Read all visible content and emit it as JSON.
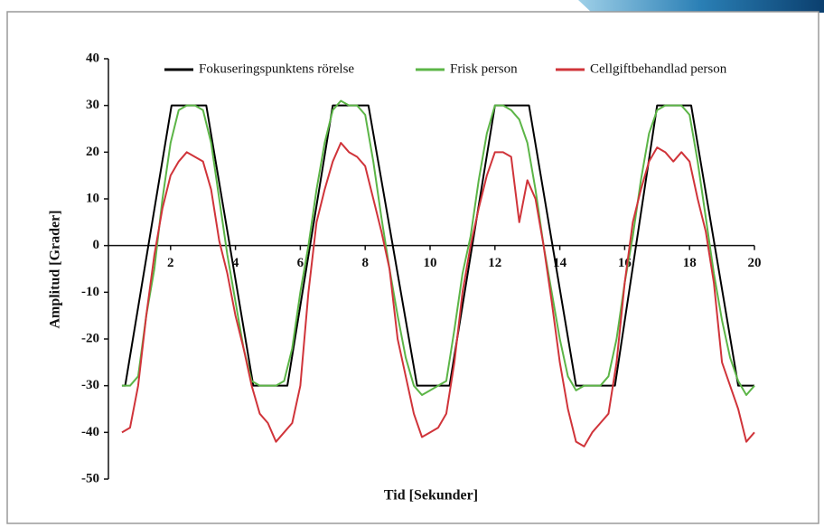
{
  "chart_data": {
    "type": "line",
    "x_label": "Tid [Sekunder]",
    "y_label": "Amplitud [Grader]",
    "xlim": [
      0,
      20
    ],
    "ylim": [
      -50,
      40
    ],
    "xticks": [
      2,
      4,
      6,
      8,
      10,
      12,
      14,
      16,
      18,
      20
    ],
    "yticks": [
      -50,
      -40,
      -30,
      -20,
      -10,
      0,
      10,
      20,
      30,
      40
    ],
    "grid": false,
    "legend": "top",
    "series": [
      {
        "name": "Fokuseringspunktens rörelse",
        "color": "#000000",
        "x": [
          0.5,
          0.6,
          2.03,
          3.1,
          4.55,
          5.6,
          7.0,
          8.1,
          9.6,
          10.6,
          12.0,
          13.05,
          14.5,
          15.7,
          17.0,
          18.05,
          19.5,
          20
        ],
        "values": [
          -30,
          -30,
          30,
          30,
          -30,
          -30,
          30,
          30,
          -30,
          -30,
          30,
          30,
          -30,
          -30,
          30,
          30,
          -30,
          -30
        ]
      },
      {
        "name": "Frisk person",
        "color": "#5cb547",
        "x": [
          0.5,
          0.75,
          1,
          1.25,
          1.5,
          1.75,
          2,
          2.25,
          2.5,
          2.75,
          3,
          3.25,
          3.5,
          3.75,
          4,
          4.25,
          4.5,
          4.75,
          5,
          5.25,
          5.5,
          5.75,
          6,
          6.25,
          6.5,
          6.75,
          7,
          7.25,
          7.5,
          7.75,
          8,
          8.25,
          8.5,
          8.75,
          9,
          9.25,
          9.5,
          9.75,
          10,
          10.25,
          10.5,
          10.75,
          11,
          11.25,
          11.5,
          11.75,
          12,
          12.25,
          12.5,
          12.75,
          13,
          13.25,
          13.5,
          13.75,
          14,
          14.25,
          14.5,
          14.75,
          15,
          15.25,
          15.5,
          15.75,
          16,
          16.25,
          16.5,
          16.75,
          17,
          17.25,
          17.5,
          17.75,
          18,
          18.25,
          18.5,
          18.75,
          19,
          19.25,
          19.5,
          19.75,
          20
        ],
        "values": [
          -30,
          -30,
          -28,
          -15,
          -5,
          10,
          22,
          29,
          30,
          30,
          29,
          22,
          10,
          -2,
          -12,
          -22,
          -29,
          -30,
          -30,
          -30,
          -29,
          -22,
          -10,
          0,
          12,
          22,
          29,
          31,
          30,
          30,
          28,
          18,
          6,
          -5,
          -15,
          -24,
          -30,
          -32,
          -31,
          -30,
          -29,
          -18,
          -6,
          2,
          14,
          24,
          30,
          30,
          29,
          27,
          22,
          12,
          0,
          -10,
          -20,
          -28,
          -31,
          -30,
          -30,
          -30,
          -28,
          -20,
          -8,
          2,
          14,
          24,
          29,
          30,
          30,
          30,
          28,
          18,
          6,
          -6,
          -16,
          -24,
          -29,
          -32,
          -30
        ]
      },
      {
        "name": "Cellgiftbehandlad person",
        "color": "#d0343a",
        "x": [
          0.5,
          0.75,
          1,
          1.25,
          1.5,
          1.75,
          2,
          2.25,
          2.5,
          2.75,
          3,
          3.25,
          3.5,
          3.75,
          4,
          4.25,
          4.5,
          4.75,
          5,
          5.25,
          5.5,
          5.75,
          6,
          6.25,
          6.5,
          6.75,
          7,
          7.25,
          7.5,
          7.75,
          8,
          8.25,
          8.5,
          8.75,
          9,
          9.25,
          9.5,
          9.75,
          10,
          10.25,
          10.5,
          10.75,
          11,
          11.25,
          11.5,
          11.75,
          12,
          12.25,
          12.5,
          12.75,
          13,
          13.25,
          13.5,
          13.75,
          14,
          14.25,
          14.5,
          14.75,
          15,
          15.25,
          15.5,
          15.75,
          16,
          16.25,
          16.5,
          16.75,
          17,
          17.25,
          17.5,
          17.75,
          18,
          18.25,
          18.5,
          18.75,
          19,
          19.25,
          19.5,
          19.75,
          20
        ],
        "values": [
          -40,
          -39,
          -30,
          -15,
          -2,
          8,
          15,
          18,
          20,
          19,
          18,
          12,
          1,
          -6,
          -15,
          -22,
          -30,
          -36,
          -38,
          -42,
          -40,
          -38,
          -30,
          -10,
          5,
          12,
          18,
          22,
          20,
          19,
          17,
          10,
          3,
          -5,
          -20,
          -28,
          -36,
          -41,
          -40,
          -39,
          -36,
          -25,
          -10,
          0,
          8,
          15,
          20,
          20,
          19,
          5,
          14,
          10,
          0,
          -12,
          -25,
          -35,
          -42,
          -43,
          -40,
          -38,
          -36,
          -25,
          -8,
          5,
          12,
          18,
          21,
          20,
          18,
          20,
          18,
          10,
          3,
          -8,
          -25,
          -30,
          -35,
          -42,
          -40
        ]
      }
    ]
  }
}
